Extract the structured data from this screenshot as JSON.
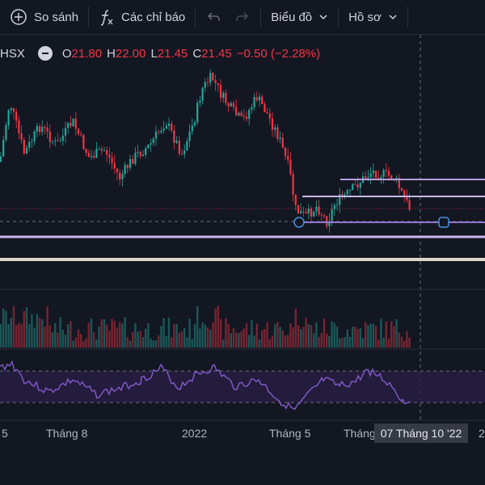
{
  "toolbar": {
    "compare_label": "So sánh",
    "indicators_label": "Các chỉ báo",
    "chart_type_label": "Biểu đồ",
    "profile_label": "Hồ sơ"
  },
  "legend": {
    "exchange": "HSX",
    "open_label": "O",
    "open": "21.80",
    "high_label": "H",
    "high": "22.00",
    "low_label": "L",
    "low": "21.45",
    "close_label": "C",
    "close": "21.45",
    "change": "−0.50 (−2.28%)",
    "down_color": "#f23645",
    "up_color": "#26a69a"
  },
  "x_axis": {
    "labels": [
      "5",
      "Tháng 8",
      "2022",
      "Tháng 5",
      "Tháng",
      "2"
    ],
    "crosshair_label": "07 Tháng 10 '22"
  },
  "colors": {
    "background": "#131722",
    "hline": "#b39ddb",
    "rsi_line": "#7e57c2",
    "rsi_band": "#2a1f47"
  },
  "chart_data": {
    "type": "candlestick",
    "last_close": 21.45
  }
}
